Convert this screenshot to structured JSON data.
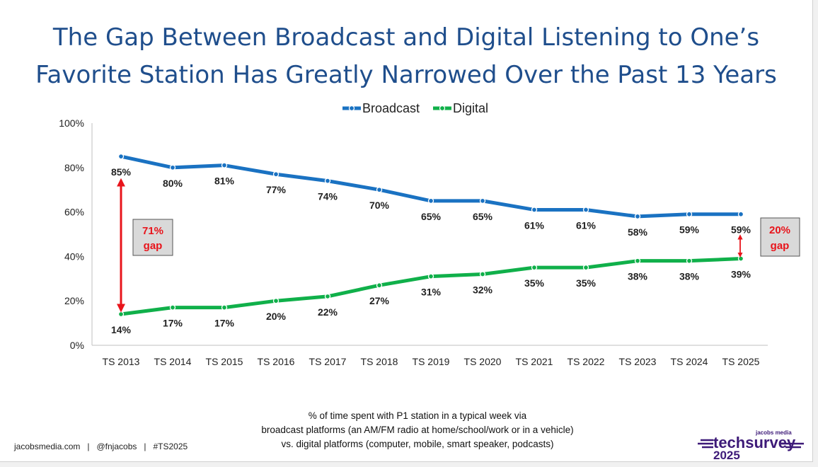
{
  "title_line1": "The Gap Between Broadcast and Digital Listening to One’s",
  "title_line2": "Favorite Station Has Greatly Narrowed Over the Past 13 Years",
  "annotations": {
    "left_gap_value": "71%",
    "left_gap_label": "gap",
    "right_gap_value": "20%",
    "right_gap_label": "gap"
  },
  "footnote": {
    "line1": "% of time spent with P1 station in a typical week via",
    "line2": "broadcast platforms (an AM/FM radio at home/school/work or in a vehicle)",
    "line3": "vs. digital platforms (computer, mobile, smart speaker, podcasts)"
  },
  "footer": "jacobsmedia.com   |   @fnjacobs   |   #TS2025",
  "logo": {
    "small": "jacobs media",
    "brand": "techsurvey",
    "year": "2025"
  },
  "colors": {
    "broadcast": "#1a72c2",
    "digital": "#10b04a",
    "title": "#1f4e8c",
    "gap_arrow": "#e8141b",
    "gap_text": "#e8141b",
    "gap_box": "#d9d9d9",
    "logo": "#3d1a78"
  },
  "chart_data": {
    "type": "line",
    "categories": [
      "TS 2013",
      "TS 2014",
      "TS 2015",
      "TS 2016",
      "TS 2017",
      "TS 2018",
      "TS 2019",
      "TS 2020",
      "TS 2021",
      "TS 2022",
      "TS 2023",
      "TS 2024",
      "TS 2025"
    ],
    "series": [
      {
        "name": "Broadcast",
        "values": [
          85,
          80,
          81,
          77,
          74,
          70,
          65,
          65,
          61,
          61,
          58,
          59,
          59
        ],
        "labels": [
          "85%",
          "80%",
          "81%",
          "77%",
          "74%",
          "70%",
          "65%",
          "65%",
          "61%",
          "61%",
          "58%",
          "59%",
          "59%"
        ]
      },
      {
        "name": "Digital",
        "values": [
          14,
          17,
          17,
          20,
          22,
          27,
          31,
          32,
          35,
          35,
          38,
          38,
          39
        ],
        "labels": [
          "14%",
          "17%",
          "17%",
          "20%",
          "22%",
          "27%",
          "31%",
          "32%",
          "35%",
          "35%",
          "38%",
          "38%",
          "39%"
        ]
      }
    ],
    "ylim": [
      0,
      100
    ],
    "yticks": [
      "0%",
      "20%",
      "40%",
      "60%",
      "80%",
      "100%"
    ],
    "legend_position": "top-center",
    "grid": false
  }
}
